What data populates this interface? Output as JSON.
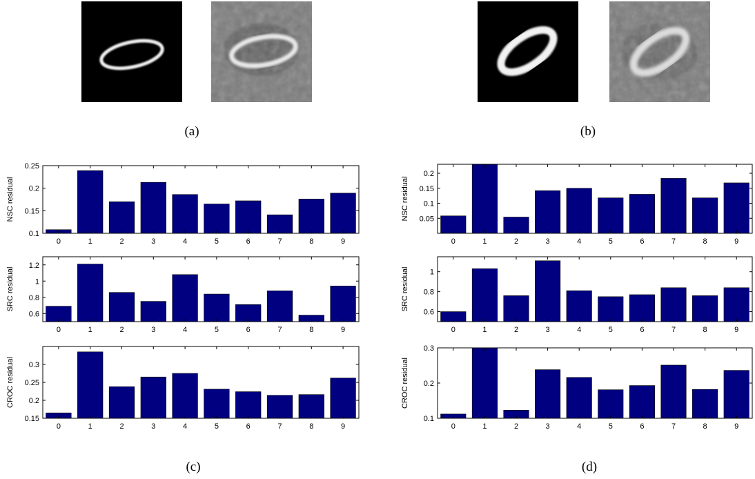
{
  "panels": {
    "a": {
      "label": "(a)"
    },
    "b": {
      "label": "(b)"
    },
    "c": {
      "label": "(c)"
    },
    "d": {
      "label": "(d)"
    }
  },
  "colors": {
    "bar": "#000080",
    "background": "#ffffff",
    "axis": "#000000"
  },
  "chart_data": [
    {
      "type": "bar",
      "panel": "c",
      "ylabel": "NSC residual",
      "categories": [
        "0",
        "1",
        "2",
        "3",
        "4",
        "5",
        "6",
        "7",
        "8",
        "9"
      ],
      "values": [
        0.108,
        0.239,
        0.17,
        0.213,
        0.186,
        0.165,
        0.172,
        0.141,
        0.176,
        0.189
      ],
      "ylim": [
        0.1,
        0.25
      ],
      "yticks": [
        "0.1",
        "0.15",
        "0.2",
        "0.25"
      ]
    },
    {
      "type": "bar",
      "panel": "c",
      "ylabel": "SRC residual",
      "categories": [
        "0",
        "1",
        "2",
        "3",
        "4",
        "5",
        "6",
        "7",
        "8",
        "9"
      ],
      "values": [
        0.69,
        1.21,
        0.86,
        0.75,
        1.08,
        0.84,
        0.71,
        0.88,
        0.58,
        0.94
      ],
      "ylim": [
        0.5,
        1.3
      ],
      "yticks": [
        "0.6",
        "0.8",
        "1",
        "1.2"
      ]
    },
    {
      "type": "bar",
      "panel": "c",
      "ylabel": "CROC residual",
      "categories": [
        "0",
        "1",
        "2",
        "3",
        "4",
        "5",
        "6",
        "7",
        "8",
        "9"
      ],
      "values": [
        0.165,
        0.335,
        0.238,
        0.265,
        0.275,
        0.231,
        0.224,
        0.214,
        0.216,
        0.262
      ],
      "ylim": [
        0.15,
        0.35
      ],
      "yticks": [
        "0.15",
        "0.2",
        "0.25",
        "0.3"
      ]
    },
    {
      "type": "bar",
      "panel": "d",
      "ylabel": "NSC residual",
      "categories": [
        "0",
        "1",
        "2",
        "3",
        "4",
        "5",
        "6",
        "7",
        "8",
        "9"
      ],
      "values": [
        0.058,
        0.23,
        0.054,
        0.142,
        0.15,
        0.118,
        0.13,
        0.183,
        0.118,
        0.168
      ],
      "ylim": [
        0.0,
        0.23
      ],
      "yticks": [
        "0.05",
        "0.1",
        "0.15",
        "0.2"
      ]
    },
    {
      "type": "bar",
      "panel": "d",
      "ylabel": "SRC residual",
      "categories": [
        "0",
        "1",
        "2",
        "3",
        "4",
        "5",
        "6",
        "7",
        "8",
        "9"
      ],
      "values": [
        0.6,
        1.03,
        0.76,
        1.11,
        0.81,
        0.75,
        0.77,
        0.84,
        0.76,
        0.84
      ],
      "ylim": [
        0.5,
        1.15
      ],
      "yticks": [
        "0.6",
        "0.8",
        "1"
      ]
    },
    {
      "type": "bar",
      "panel": "d",
      "ylabel": "CROC residual",
      "categories": [
        "0",
        "1",
        "2",
        "3",
        "4",
        "5",
        "6",
        "7",
        "8",
        "9"
      ],
      "values": [
        0.112,
        0.3,
        0.123,
        0.238,
        0.216,
        0.181,
        0.193,
        0.251,
        0.182,
        0.236
      ],
      "ylim": [
        0.1,
        0.3
      ],
      "yticks": [
        "0.1",
        "0.2",
        "0.3"
      ]
    }
  ]
}
